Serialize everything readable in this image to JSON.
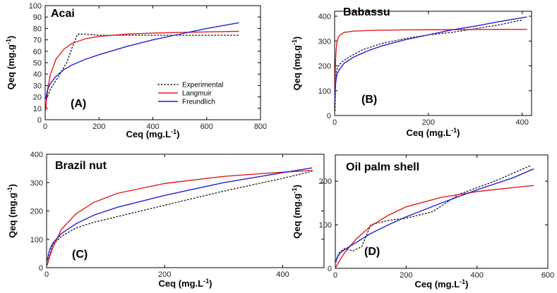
{
  "colors": {
    "experimental": "#222222",
    "langmuir": "#e41a1c",
    "freundlich": "#1f1fd6"
  },
  "legend": {
    "experimental": "Experimental",
    "langmuir": "Langmuir",
    "freundlich": "Freundlich"
  },
  "chart_data": [
    {
      "type": "line",
      "title": "Acai",
      "panel_label": "(A)",
      "xlabel": "Ceq (mg.L",
      "xlabel_sup": "-1",
      "xlabel_end": ")",
      "ylabel": "Qeq (mg.g",
      "ylabel_sup": "-1",
      "ylabel_end": ")",
      "xlim": [
        0,
        800
      ],
      "ylim": [
        0,
        100
      ],
      "xticks": [
        0,
        200,
        400,
        600,
        800
      ],
      "yticks": [
        0,
        10,
        20,
        30,
        40,
        50,
        60,
        70,
        80,
        90,
        100
      ],
      "legend_position": "center-right",
      "series": [
        {
          "name": "Experimental",
          "style": "dotted",
          "x": [
            5,
            20,
            50,
            80,
            100,
            120,
            150,
            200,
            300,
            400,
            500,
            600,
            720
          ],
          "y": [
            18,
            27,
            38,
            50,
            63,
            75,
            75,
            74,
            74,
            74,
            74,
            74,
            74
          ]
        },
        {
          "name": "Langmuir",
          "style": "solid",
          "x": [
            2,
            5,
            10,
            20,
            40,
            70,
            100,
            150,
            200,
            300,
            400,
            500,
            600,
            720
          ],
          "y": [
            8,
            17,
            28,
            40,
            53,
            62,
            67,
            71,
            73,
            75,
            76,
            76.5,
            77,
            77.5
          ]
        },
        {
          "name": "Freundlich",
          "style": "solid",
          "x": [
            2,
            5,
            10,
            20,
            40,
            70,
            100,
            150,
            200,
            300,
            400,
            500,
            600,
            720
          ],
          "y": [
            18,
            22,
            27,
            32,
            38,
            44,
            48,
            53,
            57,
            64,
            70,
            75,
            80,
            85
          ]
        }
      ]
    },
    {
      "type": "line",
      "title": "Babassu",
      "panel_label": "(B)",
      "xlabel": "Ceq (mg.L",
      "xlabel_sup": "-1",
      "xlabel_end": ")",
      "ylabel": "Qeq (mg.g",
      "ylabel_sup": "-1",
      "ylabel_end": ")",
      "xlim": [
        0,
        420
      ],
      "ylim": [
        0,
        420
      ],
      "xticks": [
        0,
        200,
        400
      ],
      "yticks": [
        0,
        100,
        200,
        300,
        400
      ],
      "series": [
        {
          "name": "Experimental",
          "style": "dotted",
          "x": [
            1,
            2,
            4,
            8,
            15,
            30,
            60,
            100,
            150,
            200,
            250,
            300,
            350,
            400
          ],
          "y": [
            20,
            120,
            180,
            200,
            215,
            235,
            265,
            290,
            310,
            325,
            335,
            350,
            365,
            385
          ]
        },
        {
          "name": "Langmuir",
          "style": "solid",
          "x": [
            0.5,
            1,
            2,
            3,
            5,
            8,
            12,
            20,
            40,
            80,
            150,
            250,
            350,
            410
          ],
          "y": [
            60,
            140,
            220,
            260,
            295,
            315,
            325,
            335,
            340,
            343,
            345,
            346,
            347,
            347
          ]
        },
        {
          "name": "Freundlich",
          "style": "solid",
          "x": [
            0.5,
            1,
            2,
            5,
            10,
            20,
            40,
            70,
            100,
            150,
            200,
            250,
            300,
            350,
            410
          ],
          "y": [
            60,
            100,
            130,
            165,
            185,
            210,
            235,
            260,
            280,
            305,
            325,
            345,
            360,
            378,
            397
          ]
        }
      ]
    },
    {
      "type": "line",
      "title": "Brazil nut",
      "panel_label": "(C)",
      "xlabel": "Ceq (mg.L",
      "xlabel_sup": "-1",
      "xlabel_end": ")",
      "ylabel": "Qeq (mg.g",
      "ylabel_sup": "-1",
      "ylabel_end": ")",
      "xlim": [
        0,
        470
      ],
      "ylim": [
        0,
        400
      ],
      "xticks": [
        0,
        200,
        400
      ],
      "yticks": [
        0,
        100,
        200,
        300,
        400
      ],
      "series": [
        {
          "name": "Experimental",
          "style": "dotted",
          "x": [
            2,
            10,
            25,
            50,
            80,
            120,
            200,
            300,
            400,
            450
          ],
          "y": [
            20,
            80,
            110,
            140,
            160,
            180,
            220,
            270,
            315,
            340
          ]
        },
        {
          "name": "Langmuir",
          "style": "solid",
          "x": [
            1,
            5,
            10,
            25,
            50,
            80,
            120,
            200,
            300,
            400,
            450
          ],
          "y": [
            8,
            37,
            68,
            135,
            190,
            230,
            262,
            297,
            322,
            337,
            343
          ]
        },
        {
          "name": "Freundlich",
          "style": "solid",
          "x": [
            1,
            5,
            10,
            25,
            50,
            80,
            120,
            200,
            300,
            400,
            450
          ],
          "y": [
            25,
            62,
            85,
            120,
            155,
            185,
            213,
            255,
            300,
            335,
            352
          ]
        }
      ]
    },
    {
      "type": "line",
      "title": "Oil palm shell",
      "panel_label": "(D)",
      "xlabel": "Ceq (mg.L",
      "xlabel_sup": "-1",
      "xlabel_end": ")",
      "ylabel": "Qeq (mg.g",
      "ylabel_sup": "-1",
      "ylabel_end": ")",
      "xlim": [
        0,
        600
      ],
      "ylim": [
        0,
        260
      ],
      "xticks": [
        0,
        200,
        400,
        600
      ],
      "yticks": [
        0,
        100,
        200
      ],
      "series": [
        {
          "name": "Experimental",
          "style": "dotted",
          "x": [
            2,
            10,
            25,
            50,
            75,
            100,
            150,
            200,
            275,
            350,
            450,
            550
          ],
          "y": [
            15,
            35,
            45,
            40,
            50,
            100,
            110,
            115,
            130,
            170,
            200,
            235
          ]
        },
        {
          "name": "Langmuir",
          "style": "solid",
          "x": [
            1,
            5,
            15,
            30,
            60,
            100,
            150,
            200,
            300,
            400,
            500,
            560
          ],
          "y": [
            2,
            8,
            22,
            40,
            68,
            97,
            122,
            141,
            163,
            176,
            185,
            190
          ]
        },
        {
          "name": "Freundlich",
          "style": "solid",
          "x": [
            1,
            5,
            15,
            30,
            60,
            100,
            150,
            200,
            300,
            400,
            500,
            560
          ],
          "y": [
            15,
            25,
            36,
            45,
            60,
            80,
            100,
            118,
            150,
            180,
            207,
            228
          ]
        }
      ]
    }
  ]
}
